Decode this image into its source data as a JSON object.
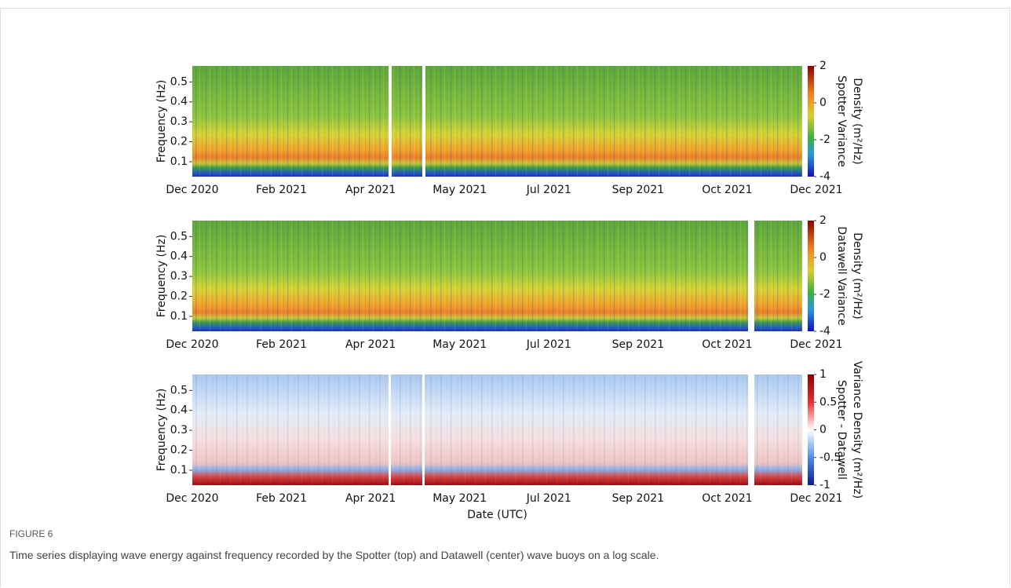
{
  "figure": {
    "label": "FIGURE 6",
    "caption": "Time series displaying wave energy against frequency recorded by the Spotter (top) and Datawell (center) wave buoys on a log scale."
  },
  "chart_data": [
    {
      "type": "heatmap",
      "ylabel": "Frequency (Hz)",
      "categories": [
        "Dec 2020",
        "Feb 2021",
        "Apr 2021",
        "May 2021",
        "Jul 2021",
        "Sep 2021",
        "Oct 2021",
        "Dec 2021"
      ],
      "ylim": [
        0.025,
        0.58
      ],
      "yticks": [
        0.1,
        0.2,
        0.3,
        0.4,
        0.5
      ],
      "colorbar_label": [
        "Spotter Variance",
        "Density (m²/Hz)"
      ],
      "clim": [
        -4,
        2
      ],
      "cticks": [
        -4,
        -2,
        0,
        2
      ],
      "colormap": "jet"
    },
    {
      "type": "heatmap",
      "ylabel": "Frequency (Hz)",
      "categories": [
        "Dec 2020",
        "Feb 2021",
        "Apr 2021",
        "May 2021",
        "Jul 2021",
        "Sep 2021",
        "Oct 2021",
        "Dec 2021"
      ],
      "ylim": [
        0.025,
        0.58
      ],
      "yticks": [
        0.1,
        0.2,
        0.3,
        0.4,
        0.5
      ],
      "colorbar_label": [
        "Datawell Variance",
        "Density (m²/Hz)"
      ],
      "clim": [
        -4,
        2
      ],
      "cticks": [
        -4,
        -2,
        0,
        2
      ],
      "colormap": "jet"
    },
    {
      "type": "heatmap",
      "ylabel": "Frequency (Hz)",
      "xlabel": "Date (UTC)",
      "categories": [
        "Dec 2020",
        "Feb 2021",
        "Apr 2021",
        "May 2021",
        "Jul 2021",
        "Sep 2021",
        "Oct 2021",
        "Dec 2021"
      ],
      "ylim": [
        0.025,
        0.58
      ],
      "yticks": [
        0.1,
        0.2,
        0.3,
        0.4,
        0.5
      ],
      "colorbar_label": [
        "Spotter - Datawell",
        "Variance Density (m²/Hz)"
      ],
      "clim": [
        -1,
        1
      ],
      "cticks": [
        -1,
        -0.5,
        0,
        0.5,
        1
      ],
      "colormap": "diverging"
    }
  ]
}
